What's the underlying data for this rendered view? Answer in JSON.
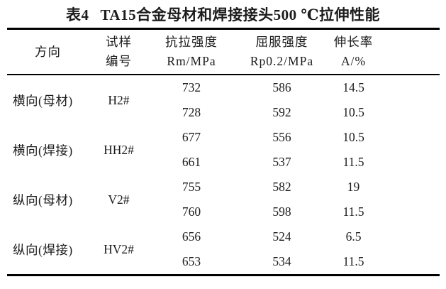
{
  "caption": {
    "label": "表4",
    "title": "TA15合金母材和焊接接头500 ℃拉伸性能"
  },
  "table": {
    "headers": [
      {
        "line1": "方向",
        "line2": ""
      },
      {
        "line1": "试样",
        "line2": "编号"
      },
      {
        "line1": "抗拉强度",
        "line2": "Rm/MPa"
      },
      {
        "line1": "屈服强度",
        "line2": "Rp0.2/MPa"
      },
      {
        "line1": "伸长率",
        "line2": "A/%"
      }
    ],
    "groups": [
      {
        "direction": "横向(母材)",
        "specimen": "H2#",
        "rows": [
          [
            "732",
            "586",
            "14.5"
          ],
          [
            "728",
            "592",
            "10.5"
          ]
        ]
      },
      {
        "direction": "横向(焊接)",
        "specimen": "HH2#",
        "rows": [
          [
            "677",
            "556",
            "10.5"
          ],
          [
            "661",
            "537",
            "11.5"
          ]
        ]
      },
      {
        "direction": "纵向(母材)",
        "specimen": "V2#",
        "rows": [
          [
            "755",
            "582",
            "19"
          ],
          [
            "760",
            "598",
            "11.5"
          ]
        ]
      },
      {
        "direction": "纵向(焊接)",
        "specimen": "HV2#",
        "rows": [
          [
            "656",
            "524",
            "6.5"
          ],
          [
            "653",
            "534",
            "11.5"
          ]
        ]
      }
    ]
  },
  "colors": {
    "text": "#1c1c1c",
    "rule": "#000000",
    "background": "#ffffff"
  }
}
